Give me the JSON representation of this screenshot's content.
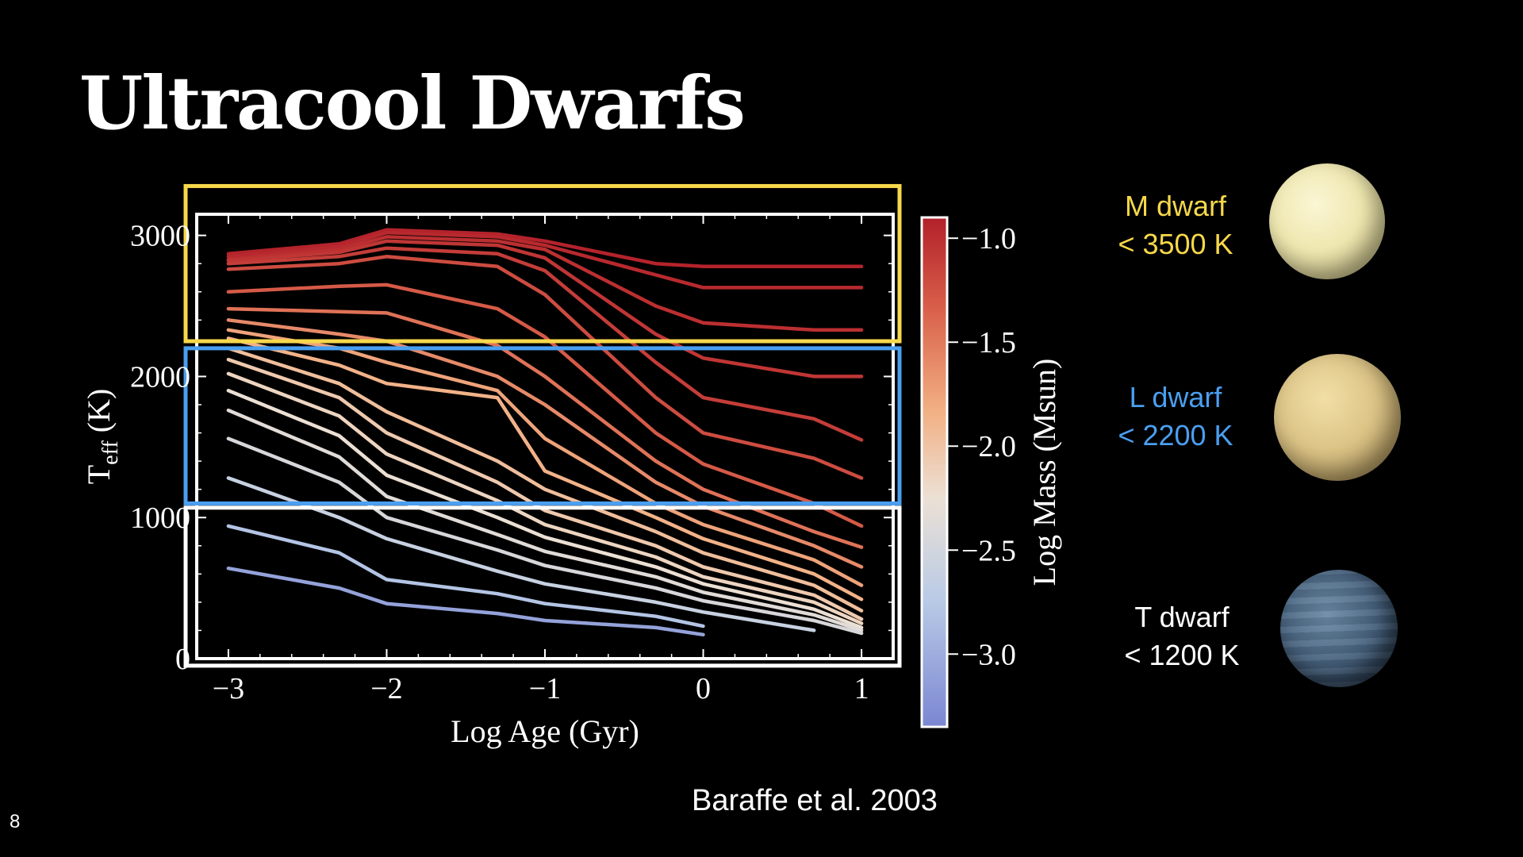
{
  "slide": {
    "title": "Ultracool Dwarfs",
    "citation": "Baraffe et al. 2003",
    "slide_number": "8"
  },
  "classes": [
    {
      "name": "M dwarf",
      "limit": "< 3500 K",
      "color": "#f7d84a"
    },
    {
      "name": "L dwarf",
      "limit": "< 2200 K",
      "color": "#4a9ff0"
    },
    {
      "name": "T dwarf",
      "limit": "< 1200 K",
      "color": "#ffffff"
    }
  ],
  "chart_data": {
    "type": "line",
    "xlabel": "Log Age (Gyr)",
    "ylabel_main": "T",
    "ylabel_sub": "eff",
    "ylabel_unit": "(K)",
    "xlim": [
      -3.2,
      1.2
    ],
    "ylim": [
      0,
      3150
    ],
    "x_ticks": [
      -3,
      -2,
      -1,
      0,
      1
    ],
    "x_tick_labels": [
      "−3",
      "−2",
      "−1",
      "0",
      "1"
    ],
    "y_ticks": [
      0,
      1000,
      2000,
      3000
    ],
    "y_tick_labels": [
      "0",
      "1000",
      "2000",
      "3000"
    ],
    "colorbar": {
      "label": "Log Mass (Msun)",
      "range": [
        -3.35,
        -0.9
      ],
      "ticks": [
        -1.0,
        -1.5,
        -2.0,
        -2.5,
        -3.0
      ],
      "tick_labels": [
        "−1.0",
        "−1.5",
        "−2.0",
        "−2.5",
        "−3.0"
      ],
      "colormap": "coolwarm"
    },
    "highlight_bands": [
      {
        "name": "M dwarf",
        "ymin": 2250,
        "ymax": 3350,
        "color": "#f7d84a"
      },
      {
        "name": "L dwarf",
        "ymin": 1100,
        "ymax": 2200,
        "color": "#4a9ff0"
      },
      {
        "name": "T dwarf",
        "ymin": -50,
        "ymax": 1070,
        "color": "#ffffff"
      }
    ],
    "x": [
      -3,
      -2.3,
      -2,
      -1.3,
      -1,
      -0.3,
      0,
      0.7,
      1
    ],
    "series": [
      {
        "logmass": -0.92,
        "values": [
          2870,
          2940,
          3040,
          3010,
          2960,
          2800,
          2780,
          2780,
          2780
        ]
      },
      {
        "logmass": -0.96,
        "values": [
          2850,
          2920,
          3020,
          2990,
          2930,
          2720,
          2630,
          2630,
          2630
        ]
      },
      {
        "logmass": -1.0,
        "values": [
          2830,
          2900,
          2990,
          2960,
          2900,
          2500,
          2380,
          2330,
          2330
        ]
      },
      {
        "logmass": -1.05,
        "values": [
          2820,
          2880,
          2960,
          2930,
          2840,
          2300,
          2130,
          2000,
          2000
        ]
      },
      {
        "logmass": -1.1,
        "values": [
          2800,
          2850,
          2910,
          2870,
          2750,
          2100,
          1850,
          1700,
          1550
        ]
      },
      {
        "logmass": -1.2,
        "values": [
          2760,
          2800,
          2850,
          2780,
          2580,
          1850,
          1600,
          1420,
          1280
        ]
      },
      {
        "logmass": -1.3,
        "values": [
          2600,
          2640,
          2650,
          2480,
          2280,
          1600,
          1380,
          1100,
          940
        ]
      },
      {
        "logmass": -1.45,
        "values": [
          2480,
          2460,
          2450,
          2220,
          2000,
          1400,
          1200,
          900,
          790
        ]
      },
      {
        "logmass": -1.6,
        "values": [
          2400,
          2300,
          2250,
          2000,
          1800,
          1250,
          1080,
          800,
          650
        ]
      },
      {
        "logmass": -1.75,
        "values": [
          2330,
          2200,
          2100,
          1900,
          1560,
          1100,
          950,
          700,
          520
        ]
      },
      {
        "logmass": -1.85,
        "values": [
          2270,
          2080,
          1950,
          1850,
          1330,
          1000,
          850,
          600,
          420
        ]
      },
      {
        "logmass": -1.95,
        "values": [
          2200,
          1950,
          1750,
          1400,
          1200,
          900,
          750,
          520,
          340
        ]
      },
      {
        "logmass": -2.05,
        "values": [
          2120,
          1850,
          1600,
          1250,
          1050,
          800,
          650,
          450,
          280
        ]
      },
      {
        "logmass": -2.15,
        "values": [
          2020,
          1720,
          1450,
          1120,
          950,
          720,
          580,
          400,
          250
        ]
      },
      {
        "logmass": -2.25,
        "values": [
          1900,
          1580,
          1300,
          1000,
          860,
          650,
          530,
          350,
          220
        ]
      },
      {
        "logmass": -2.35,
        "values": [
          1760,
          1430,
          1150,
          880,
          760,
          580,
          470,
          310,
          200
        ]
      },
      {
        "logmass": -2.45,
        "values": [
          1560,
          1250,
          1000,
          770,
          660,
          500,
          410,
          270,
          180
        ]
      },
      {
        "logmass": -2.6,
        "values": [
          1280,
          1000,
          850,
          620,
          530,
          400,
          330,
          200,
          null
        ]
      },
      {
        "logmass": -2.8,
        "values": [
          940,
          750,
          560,
          460,
          390,
          300,
          230,
          null,
          null
        ]
      },
      {
        "logmass": -3.1,
        "values": [
          640,
          500,
          390,
          320,
          270,
          220,
          170,
          null,
          null
        ]
      }
    ]
  }
}
